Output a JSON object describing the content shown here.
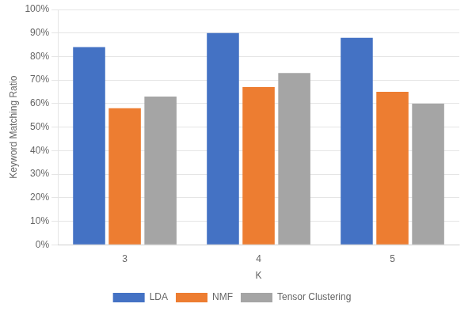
{
  "chart_data": {
    "type": "bar",
    "categories": [
      "3",
      "4",
      "5"
    ],
    "xlabel": "K",
    "ylabel": "Keyword Matching Ratio",
    "series": [
      {
        "name": "LDA",
        "color": "#4472C4",
        "values": [
          0.84,
          0.9,
          0.88
        ]
      },
      {
        "name": "NMF",
        "color": "#ED7D31",
        "values": [
          0.58,
          0.67,
          0.65
        ]
      },
      {
        "name": "Tensor Clustering",
        "color": "#A5A5A5",
        "values": [
          0.63,
          0.73,
          0.6
        ]
      }
    ],
    "ylim": [
      0,
      1.0
    ],
    "yticks": [
      {
        "value": 0.0,
        "label": "0%"
      },
      {
        "value": 0.1,
        "label": "10%"
      },
      {
        "value": 0.2,
        "label": "20%"
      },
      {
        "value": 0.3,
        "label": "30%"
      },
      {
        "value": 0.4,
        "label": "40%"
      },
      {
        "value": 0.5,
        "label": "50%"
      },
      {
        "value": 0.6,
        "label": "60%"
      },
      {
        "value": 0.7,
        "label": "70%"
      },
      {
        "value": 0.8,
        "label": "80%"
      },
      {
        "value": 0.9,
        "label": "90%"
      },
      {
        "value": 1.0,
        "label": "100%"
      }
    ],
    "grid": true,
    "legend": "bottom"
  }
}
